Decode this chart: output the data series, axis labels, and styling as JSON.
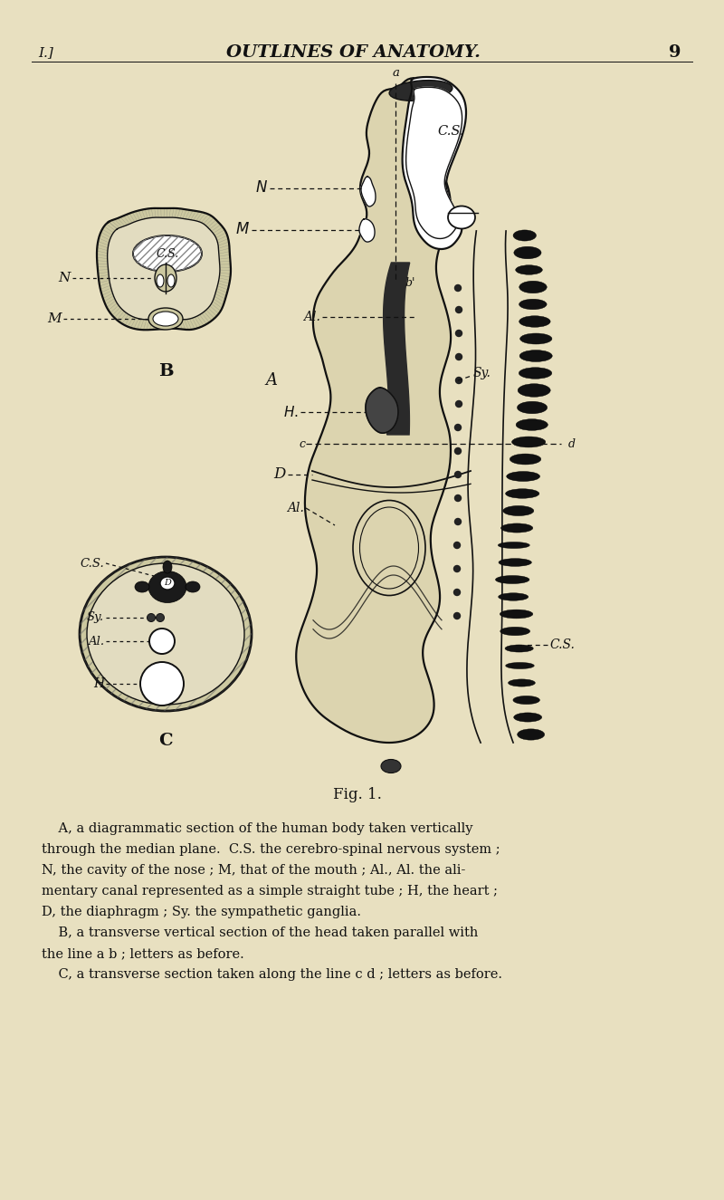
{
  "bg_color": "#e8e0c0",
  "title": "OUTLINES OF ANATOMY.",
  "page_num_left": "I.]",
  "page_num_right": "9",
  "fig_caption": "Fig. 1.",
  "caption_lines": [
    "    A, a diagrammatic section of the human body taken vertically",
    "through the median plane.  C.S. the cerebro-spinal nervous system ;",
    "N, the cavity of the nose ; M, that of the mouth ; Al., Al. the ali-",
    "mentary canal represented as a simple straight tube ; H, the heart ;",
    "D, the diaphragm ; Sy. the sympathetic ganglia.",
    "    B, a transverse vertical section of the head taken parallel with",
    "the line a b ; letters as before.",
    "    C, a transverse section taken along the line c d ; letters as before."
  ],
  "ink_color": "#111111"
}
